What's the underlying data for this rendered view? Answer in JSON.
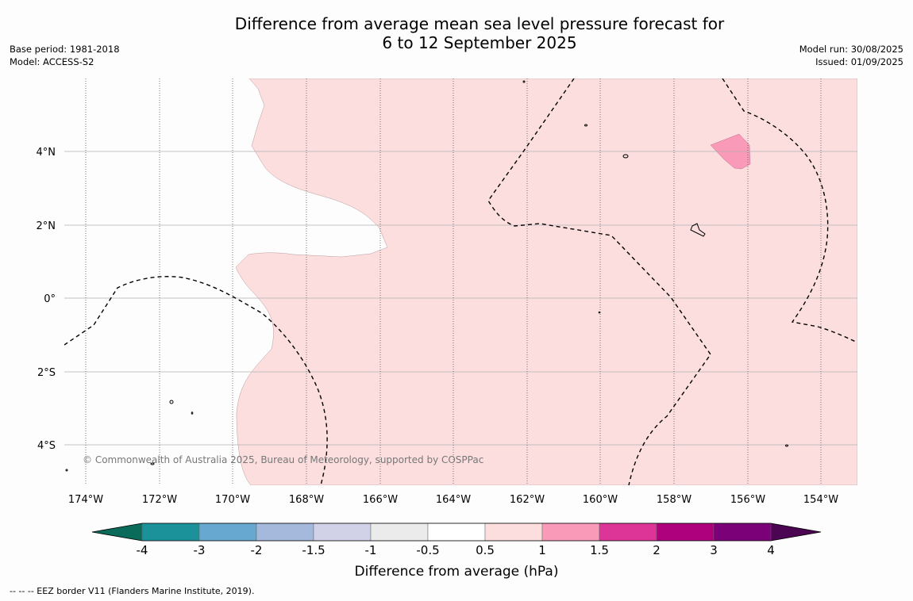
{
  "header": {
    "title_line1": "Difference from average mean sea level pressure forecast for",
    "title_line2": "6 to 12 September 2025",
    "base_period": "Base period: 1981-2018",
    "model": "Model: ACCESS-S2",
    "model_run": "Model run: 30/08/2025",
    "issued": "Issued: 01/09/2025"
  },
  "map": {
    "lat_labels": [
      "4°N",
      "2°N",
      "0°",
      "2°S",
      "4°S"
    ],
    "lon_labels": [
      "174°W",
      "172°W",
      "170°W",
      "168°W",
      "166°W",
      "164°W",
      "162°W",
      "160°W",
      "158°W",
      "156°W",
      "154°W"
    ],
    "copyright": "© Commonwealth of Australia 2025, Bureau of Meteorology, supported by COSPPac",
    "colors": {
      "anomaly_0_5_to_1": "#fcdede",
      "anomaly_1_to_1_5": "#f89ab8"
    }
  },
  "colorbar": {
    "label": "Difference from average (hPa)",
    "ticks": [
      "-4",
      "-3",
      "-2",
      "-1.5",
      "-1",
      "-0.5",
      "0.5",
      "1",
      "1.5",
      "2",
      "3",
      "4"
    ],
    "under_color": "#0b6b5a",
    "over_color": "#4b0552",
    "colors": [
      "#1b9199",
      "#66a8cf",
      "#a5b9dc",
      "#d1d2e8",
      "#ebebeb",
      "#ffffff",
      "#fcdede",
      "#f89ab8",
      "#dd3497",
      "#ae017e",
      "#7a0177"
    ]
  },
  "footer": {
    "legend_text": "--  --  -- EEZ border V11 (Flanders Marine Institute, 2019)."
  }
}
